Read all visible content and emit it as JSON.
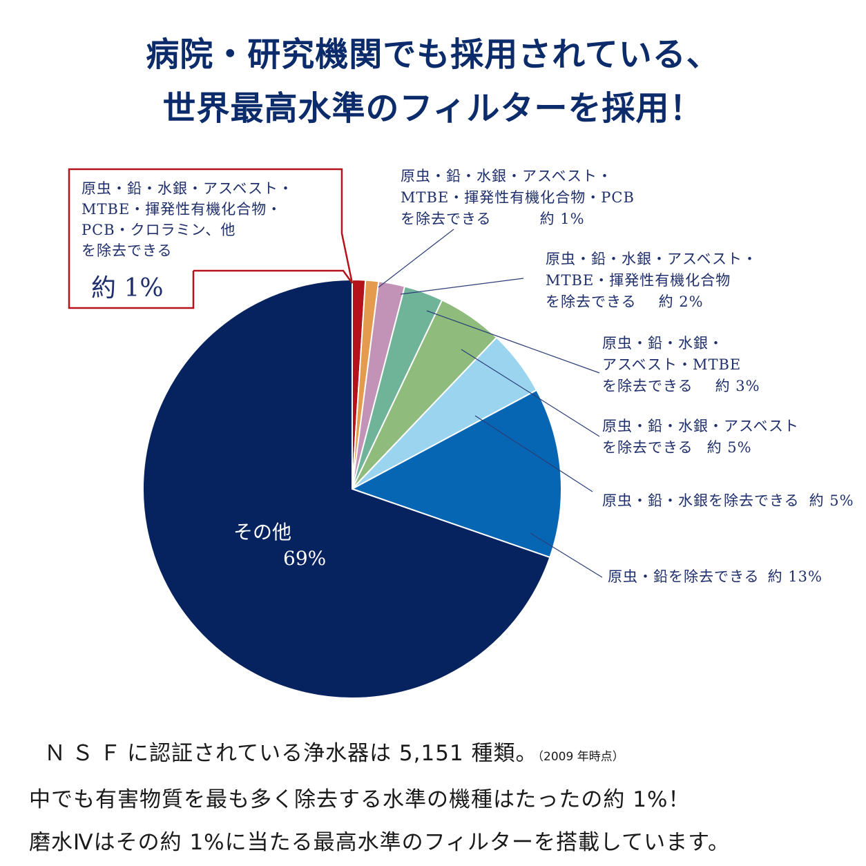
{
  "header": {
    "title_line1": "病院・研究機関でも採用されている、",
    "title_line2": "世界最高水準のフィルターを採用！"
  },
  "chart_data": {
    "type": "pie",
    "slices": [
      {
        "label": "原虫・鉛・水銀・アスベスト・MTBE・揮発性有機化合物・PCB・クロラミン、他を除去できる",
        "value": 1,
        "color": "#b5121b"
      },
      {
        "label": "原虫・鉛・水銀・アスベスト・MTBE・揮発性有機化合物・PCBを除去できる",
        "value": 1,
        "color": "#e49b4e"
      },
      {
        "label": "原虫・鉛・水銀・アスベスト・MTBE・揮発性有機化合物を除去できる",
        "value": 2,
        "color": "#c293b6"
      },
      {
        "label": "原虫・鉛・水銀・アスベスト・MTBEを除去できる",
        "value": 3,
        "color": "#6fb398"
      },
      {
        "label": "原虫・鉛・水銀・アスベストを除去できる",
        "value": 5,
        "color": "#8fbb7c"
      },
      {
        "label": "原虫・鉛・水銀を除去できる",
        "value": 5,
        "color": "#9bd4ee"
      },
      {
        "label": "原虫・鉛を除去できる",
        "value": 13,
        "color": "#0766b4"
      },
      {
        "label": "その他",
        "value": 69,
        "color": "#07235f"
      }
    ]
  },
  "callout": {
    "lines": [
      "原虫・鉛・水銀・アスベスト・",
      "MTBE・揮発性有機化合物・",
      "PCB・クロラミン、他",
      "を除去できる"
    ],
    "value": "約 1%"
  },
  "labels": {
    "pcb": {
      "lines": [
        "原虫・鉛・水銀・アスベスト・",
        "MTBE・揮発性有機化合物・PCB"
      ],
      "last": "を除去できる",
      "value": "約 1%"
    },
    "voc": {
      "lines": [
        "原虫・鉛・水銀・アスベスト・",
        "MTBE・揮発性有機化合物"
      ],
      "last": "を除去できる",
      "value": "約 2%"
    },
    "mtbe": {
      "lines": [
        "原虫・鉛・水銀・",
        "アスベスト・MTBE"
      ],
      "last": "を除去できる",
      "value": "約 3%"
    },
    "asbestos": {
      "lines": [
        "原虫・鉛・水銀・アスベスト"
      ],
      "last": "を除去できる",
      "value": "約 5%"
    },
    "mercury": {
      "text": "原虫・鉛・水銀を除去できる",
      "value": "約 5%"
    },
    "lead": {
      "text": "原虫・鉛を除去できる",
      "value": "約 13%"
    },
    "other": {
      "name": "その他",
      "value": "69%"
    }
  },
  "footer": {
    "line1_prefix": "ＮＳＦ",
    "line1_main": "に認証されている浄水器は 5,151 種類。",
    "line1_note": "（2009 年時点）",
    "line2": "中でも有害物質を最も多く除去する水準の機種はたったの約 1%！",
    "line3": "磨水Ⅳはその約 1%に当たる最高水準のフィルターを搭載しています。"
  }
}
